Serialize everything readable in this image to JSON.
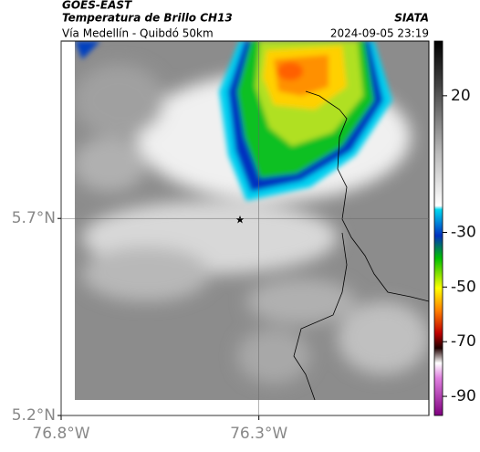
{
  "header": {
    "source": "GOES-EAST",
    "title": "Temperatura de Brillo CH13",
    "org": "SIATA",
    "region": "Vía Medellín - Quibdó 50km",
    "datetime": "2024-09-05 23:19"
  },
  "map": {
    "xlim": [
      -76.8,
      -75.87
    ],
    "ylim": [
      5.2,
      6.15
    ],
    "xticks": [
      {
        "value": -76.8,
        "label": "76.8°W"
      },
      {
        "value": -76.3,
        "label": "76.3°W"
      }
    ],
    "yticks": [
      {
        "value": 5.2,
        "label": "5.2°N"
      },
      {
        "value": 5.7,
        "label": "5.7°N"
      }
    ],
    "grid": true
  },
  "colorbar": {
    "clim": [
      -97,
      40
    ],
    "ticks": [
      20,
      -30,
      -50,
      -70,
      -90
    ]
  }
}
